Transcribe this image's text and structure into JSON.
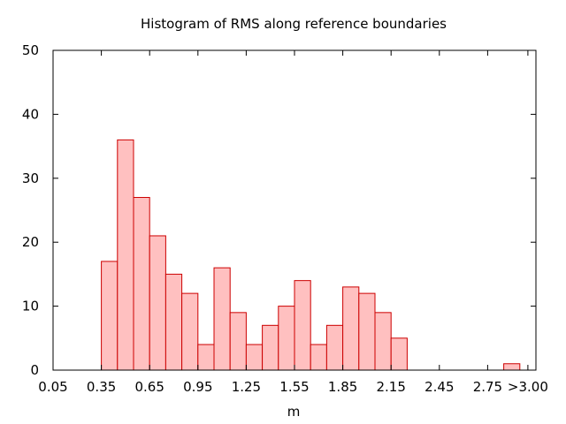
{
  "chart_data": {
    "type": "bar",
    "title": "Histogram of RMS along reference boundaries",
    "xlabel": "m",
    "ylabel": "",
    "ylim": [
      0,
      50
    ],
    "xlim": [
      0.05,
      3.05
    ],
    "yticks": [
      0,
      10,
      20,
      30,
      40,
      50
    ],
    "xticks": [
      {
        "value": 0.05,
        "label": "0.05"
      },
      {
        "value": 0.35,
        "label": "0.35"
      },
      {
        "value": 0.65,
        "label": "0.65"
      },
      {
        "value": 0.95,
        "label": "0.95"
      },
      {
        "value": 1.25,
        "label": "1.25"
      },
      {
        "value": 1.55,
        "label": "1.55"
      },
      {
        "value": 1.85,
        "label": "1.85"
      },
      {
        "value": 2.15,
        "label": "2.15"
      },
      {
        "value": 2.45,
        "label": "2.45"
      },
      {
        "value": 2.75,
        "label": "2.75"
      },
      {
        "value": 3.0,
        "label": ">3.00"
      }
    ],
    "bin_width": 0.1,
    "bin_starts": [
      0.35,
      0.45,
      0.55,
      0.65,
      0.75,
      0.85,
      0.95,
      1.05,
      1.15,
      1.25,
      1.35,
      1.45,
      1.55,
      1.65,
      1.75,
      1.85,
      1.95,
      2.05,
      2.15,
      2.85
    ],
    "values": [
      17,
      36,
      27,
      21,
      15,
      12,
      4,
      16,
      9,
      4,
      7,
      10,
      14,
      4,
      7,
      13,
      12,
      9,
      5,
      1
    ],
    "grid": false,
    "colors": {
      "fill": "#ffc0c0",
      "stroke": "#cc0000",
      "axis": "#000000"
    }
  }
}
